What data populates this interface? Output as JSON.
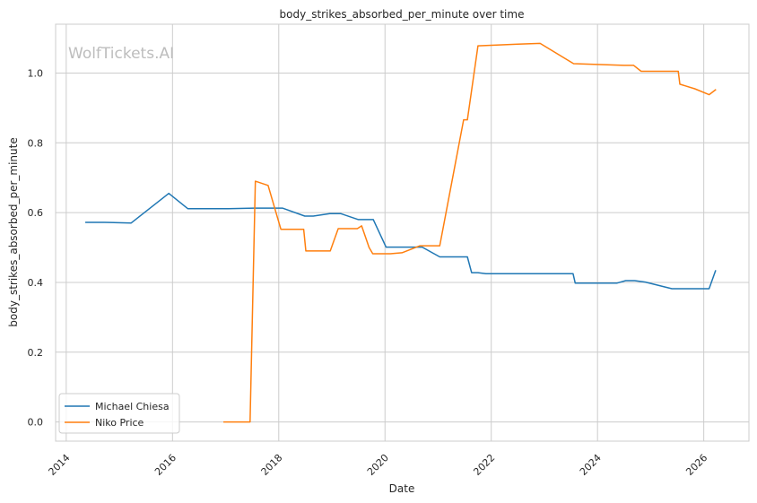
{
  "chart_data": {
    "type": "line",
    "title": "body_strikes_absorbed_per_minute over time",
    "xlabel": "Date",
    "ylabel": "body_strikes_absorbed_per_minute",
    "watermark": "WolfTickets.AI",
    "xlim": [
      2013.8,
      2026.85
    ],
    "ylim": [
      -0.055,
      1.14
    ],
    "x_ticks": [
      2014,
      2016,
      2018,
      2020,
      2022,
      2024,
      2026
    ],
    "x_tick_labels": [
      "2014",
      "2016",
      "2018",
      "2020",
      "2022",
      "2024",
      "2026"
    ],
    "y_ticks": [
      0.0,
      0.2,
      0.4,
      0.6,
      0.8,
      1.0
    ],
    "y_tick_labels": [
      "0.0",
      "0.2",
      "0.4",
      "0.6",
      "0.8",
      "1.0"
    ],
    "grid": true,
    "legend_position": "lower-left",
    "series": [
      {
        "name": "Michael Chiesa",
        "color": "#1f77b4",
        "points": [
          [
            2014.37,
            0.572
          ],
          [
            2014.72,
            0.572
          ],
          [
            2015.22,
            0.57
          ],
          [
            2015.93,
            0.655
          ],
          [
            2016.29,
            0.611
          ],
          [
            2017.05,
            0.611
          ],
          [
            2017.54,
            0.613
          ],
          [
            2018.07,
            0.613
          ],
          [
            2018.49,
            0.59
          ],
          [
            2018.65,
            0.59
          ],
          [
            2018.96,
            0.597
          ],
          [
            2019.17,
            0.597
          ],
          [
            2019.5,
            0.58
          ],
          [
            2019.78,
            0.58
          ],
          [
            2020.02,
            0.501
          ],
          [
            2020.7,
            0.501
          ],
          [
            2021.03,
            0.473
          ],
          [
            2021.55,
            0.473
          ],
          [
            2021.63,
            0.428
          ],
          [
            2021.75,
            0.428
          ],
          [
            2021.9,
            0.425
          ],
          [
            2023.54,
            0.425
          ],
          [
            2023.58,
            0.398
          ],
          [
            2024.37,
            0.398
          ],
          [
            2024.53,
            0.405
          ],
          [
            2024.7,
            0.405
          ],
          [
            2024.9,
            0.401
          ],
          [
            2025.4,
            0.382
          ],
          [
            2026.1,
            0.382
          ],
          [
            2026.22,
            0.433
          ]
        ]
      },
      {
        "name": "Niko Price",
        "color": "#ff7f0e",
        "points": [
          [
            2016.97,
            0.0
          ],
          [
            2017.46,
            0.0
          ],
          [
            2017.56,
            0.69
          ],
          [
            2017.8,
            0.678
          ],
          [
            2018.04,
            0.552
          ],
          [
            2018.47,
            0.552
          ],
          [
            2018.51,
            0.49
          ],
          [
            2018.97,
            0.49
          ],
          [
            2019.12,
            0.554
          ],
          [
            2019.48,
            0.554
          ],
          [
            2019.56,
            0.562
          ],
          [
            2019.7,
            0.5
          ],
          [
            2019.77,
            0.482
          ],
          [
            2020.1,
            0.482
          ],
          [
            2020.32,
            0.485
          ],
          [
            2020.66,
            0.505
          ],
          [
            2021.03,
            0.505
          ],
          [
            2021.48,
            0.866
          ],
          [
            2021.55,
            0.866
          ],
          [
            2021.75,
            1.078
          ],
          [
            2022.5,
            1.083
          ],
          [
            2022.92,
            1.085
          ],
          [
            2023.55,
            1.027
          ],
          [
            2024.5,
            1.022
          ],
          [
            2024.68,
            1.022
          ],
          [
            2024.82,
            1.005
          ],
          [
            2025.52,
            1.005
          ],
          [
            2025.55,
            0.968
          ],
          [
            2025.83,
            0.955
          ],
          [
            2026.1,
            0.938
          ],
          [
            2026.22,
            0.952
          ]
        ]
      }
    ]
  }
}
